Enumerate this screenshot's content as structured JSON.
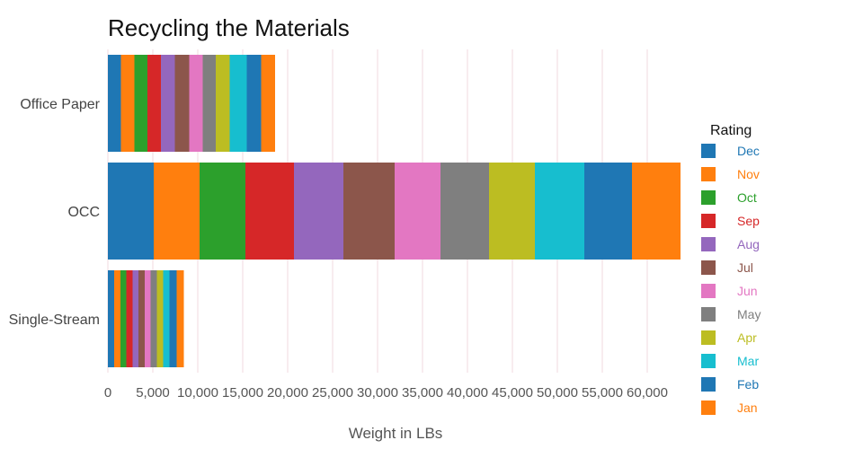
{
  "chart_data": {
    "type": "bar",
    "orientation": "horizontal",
    "stacked": true,
    "title": "Recycling the Materials",
    "xlabel": "Weight in LBs",
    "ylabel": "",
    "xlim": [
      0,
      64000
    ],
    "x_ticks": [
      "0",
      "5,000",
      "10,000",
      "15,000",
      "20,000",
      "25,000",
      "30,000",
      "35,000",
      "40,000",
      "45,000",
      "50,000",
      "55,000",
      "60,000"
    ],
    "categories": [
      "Office Paper",
      "OCC",
      "Single-Stream"
    ],
    "grid": true,
    "legend_title": "Rating",
    "legend_position": "right",
    "series": [
      {
        "name": "Dec",
        "color": "#1f77b4",
        "values": [
          1450,
          5100,
          700
        ]
      },
      {
        "name": "Nov",
        "color": "#ff7f0e",
        "values": [
          1500,
          5100,
          700
        ]
      },
      {
        "name": "Oct",
        "color": "#2ca02c",
        "values": [
          1450,
          5100,
          650
        ]
      },
      {
        "name": "Sep",
        "color": "#d62728",
        "values": [
          1500,
          5400,
          700
        ]
      },
      {
        "name": "Aug",
        "color": "#9467bd",
        "values": [
          1550,
          5500,
          650
        ]
      },
      {
        "name": "Jul",
        "color": "#8c564b",
        "values": [
          1600,
          5700,
          700
        ]
      },
      {
        "name": "Jun",
        "color": "#e377c2",
        "values": [
          1500,
          5100,
          650
        ]
      },
      {
        "name": "May",
        "color": "#7f7f7f",
        "values": [
          1450,
          5400,
          700
        ]
      },
      {
        "name": "Apr",
        "color": "#bcbd22",
        "values": [
          1550,
          5100,
          700
        ]
      },
      {
        "name": "Mar",
        "color": "#17becf",
        "values": [
          1900,
          5500,
          700
        ]
      },
      {
        "name": "Feb",
        "color": "#1f77b4",
        "values": [
          1600,
          5300,
          800
        ]
      },
      {
        "name": "Jan",
        "color": "#ff7f0e",
        "values": [
          1550,
          5400,
          800
        ]
      }
    ]
  }
}
